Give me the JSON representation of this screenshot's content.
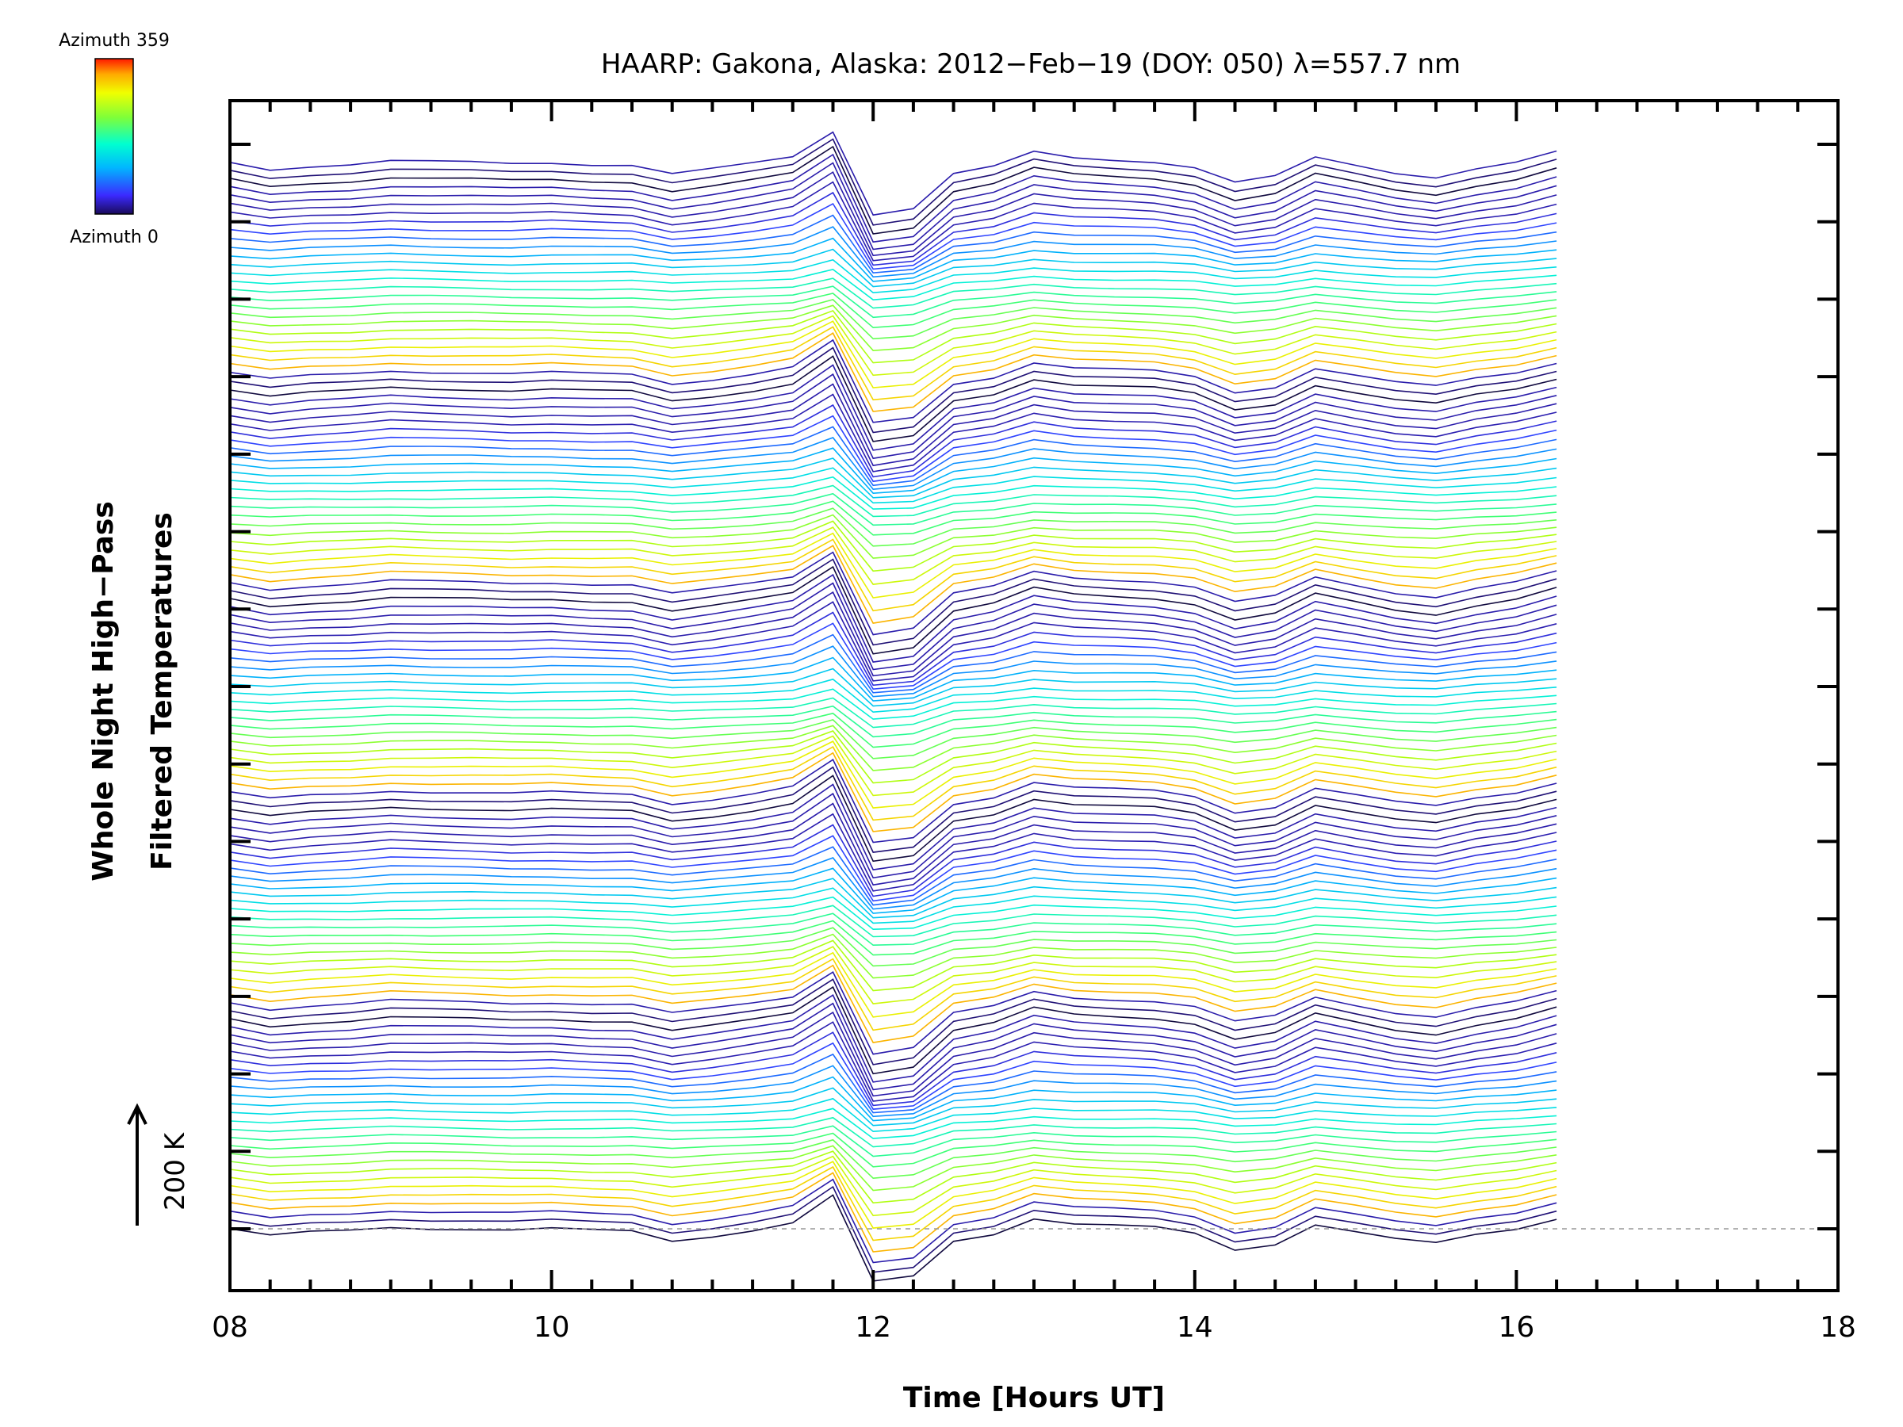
{
  "chart_data": {
    "type": "line",
    "title": "HAARP: Gakona,  Alaska: 2012−Feb−19 (DOY: 050) λ=557.7 nm",
    "xlabel": "Time [Hours UT]",
    "ylabel_line1": "Whole Night High−Pass",
    "ylabel_line2": "Filtered Temperatures",
    "xlim": [
      8,
      18
    ],
    "x_ticks": [
      8,
      10,
      12,
      14,
      16,
      18
    ],
    "x_tick_labels": [
      "08",
      "10",
      "12",
      "14",
      "16",
      "18"
    ],
    "y_ticks_count": 15,
    "y_tick_labels": [],
    "scale_bar": {
      "label": "200 K",
      "value_k": 200
    },
    "colorbar": {
      "top_label": "Azimuth 359",
      "bottom_label": "Azimuth 0",
      "colormap": "rainbow"
    },
    "baseline": {
      "style": "dashed",
      "color": "#999999"
    },
    "series_description": "Stacked high-pass filtered temperature traces, one per azimuth bin (0-359), offset vertically; colour encodes azimuth.",
    "series_count": 128,
    "stack_groups": 5,
    "x": [
      8.0,
      8.25,
      8.5,
      8.75,
      9.0,
      9.25,
      9.5,
      9.75,
      10.0,
      10.25,
      10.5,
      10.75,
      11.0,
      11.25,
      11.5,
      11.75,
      12.0,
      12.25,
      12.5,
      12.75,
      13.0,
      13.25,
      13.5,
      13.75,
      14.0,
      14.25,
      14.5,
      14.75,
      15.0,
      15.25,
      15.5,
      15.75,
      16.0,
      16.25
    ],
    "base_profile_k": [
      0,
      -12,
      -6,
      -3,
      3,
      1,
      0,
      -2,
      0,
      -3,
      -4,
      -20,
      -12,
      -2,
      10,
      55,
      -90,
      -80,
      -20,
      -8,
      18,
      8,
      5,
      2,
      -8,
      -35,
      -25,
      8,
      -5,
      -18,
      -25,
      -10,
      0,
      18
    ]
  },
  "colors": {
    "axis": "#000000",
    "baseline": "#999999"
  }
}
